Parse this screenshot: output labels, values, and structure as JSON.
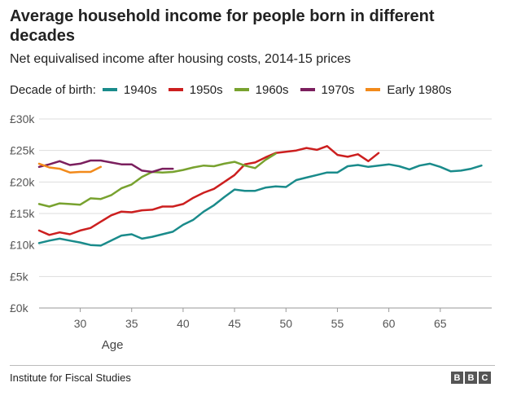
{
  "chart_data": {
    "type": "line",
    "title": "Average household income for people born in different decades",
    "subtitle": "Net equivalised income after housing costs, 2014-15 prices",
    "legend_title": "Decade of birth:",
    "legend_position": "top",
    "xlabel": "Age",
    "ylabel": "",
    "xlim": [
      26,
      70
    ],
    "ylim": [
      0,
      30000
    ],
    "x_ticks": [
      30,
      35,
      40,
      45,
      50,
      55,
      60,
      65
    ],
    "y_ticks": [
      0,
      5000,
      10000,
      15000,
      20000,
      25000,
      30000
    ],
    "y_tick_labels": [
      "£0k",
      "£5k",
      "£10k",
      "£15k",
      "£20k",
      "£25k",
      "£30k"
    ],
    "grid": true,
    "series": [
      {
        "name": "1940s",
        "color": "#1a8b8b",
        "x": [
          26,
          27,
          28,
          29,
          30,
          31,
          32,
          33,
          34,
          35,
          36,
          37,
          38,
          39,
          40,
          41,
          42,
          43,
          44,
          45,
          46,
          47,
          48,
          49,
          50,
          51,
          52,
          53,
          54,
          55,
          56,
          57,
          58,
          59,
          60,
          61,
          62,
          63,
          64,
          65,
          66,
          67,
          68,
          69
        ],
        "y": [
          10300,
          10700,
          11000,
          10700,
          10400,
          10000,
          9900,
          10700,
          11500,
          11700,
          11000,
          11300,
          11700,
          12100,
          13200,
          14000,
          15300,
          16300,
          17600,
          18800,
          18600,
          18600,
          19100,
          19300,
          19200,
          20300,
          20700,
          21100,
          21500,
          21500,
          22500,
          22700,
          22400,
          22600,
          22800,
          22500,
          22000,
          22600,
          22900,
          22400,
          21700,
          21800,
          22100,
          22600
        ]
      },
      {
        "name": "1950s",
        "color": "#cc1f1f",
        "x": [
          26,
          27,
          28,
          29,
          30,
          31,
          32,
          33,
          34,
          35,
          36,
          37,
          38,
          39,
          40,
          41,
          42,
          43,
          44,
          45,
          46,
          47,
          48,
          49,
          50,
          51,
          52,
          53,
          54,
          55,
          56,
          57,
          58,
          59
        ],
        "y": [
          12300,
          11600,
          12000,
          11700,
          12300,
          12700,
          13700,
          14700,
          15300,
          15200,
          15500,
          15600,
          16100,
          16100,
          16500,
          17500,
          18300,
          18900,
          20000,
          21100,
          22800,
          23100,
          23900,
          24600,
          24800,
          25000,
          25400,
          25100,
          25700,
          24300,
          24000,
          24400,
          23300,
          24600
        ]
      },
      {
        "name": "1960s",
        "color": "#78a22f",
        "x": [
          26,
          27,
          28,
          29,
          30,
          31,
          32,
          33,
          34,
          35,
          36,
          37,
          38,
          39,
          40,
          41,
          42,
          43,
          44,
          45,
          46,
          47,
          48,
          49
        ],
        "y": [
          16500,
          16100,
          16600,
          16500,
          16400,
          17400,
          17300,
          17900,
          19000,
          19600,
          20800,
          21600,
          21500,
          21600,
          21900,
          22300,
          22600,
          22500,
          22900,
          23200,
          22600,
          22200,
          23500,
          24500
        ]
      },
      {
        "name": "1970s",
        "color": "#7b1f5e",
        "x": [
          26,
          27,
          28,
          29,
          30,
          31,
          32,
          33,
          34,
          35,
          36,
          37,
          38,
          39
        ],
        "y": [
          22400,
          22800,
          23300,
          22700,
          22900,
          23400,
          23400,
          23100,
          22800,
          22800,
          21800,
          21600,
          22100,
          22100
        ]
      },
      {
        "name": "Early 1980s",
        "color": "#f28a1b",
        "x": [
          26,
          27,
          28,
          29,
          30,
          31,
          32
        ],
        "y": [
          22900,
          22300,
          22100,
          21500,
          21600,
          21600,
          22400
        ]
      }
    ]
  },
  "footer": {
    "source": "Institute for Fiscal Studies",
    "logo_letters": [
      "B",
      "B",
      "C"
    ]
  }
}
